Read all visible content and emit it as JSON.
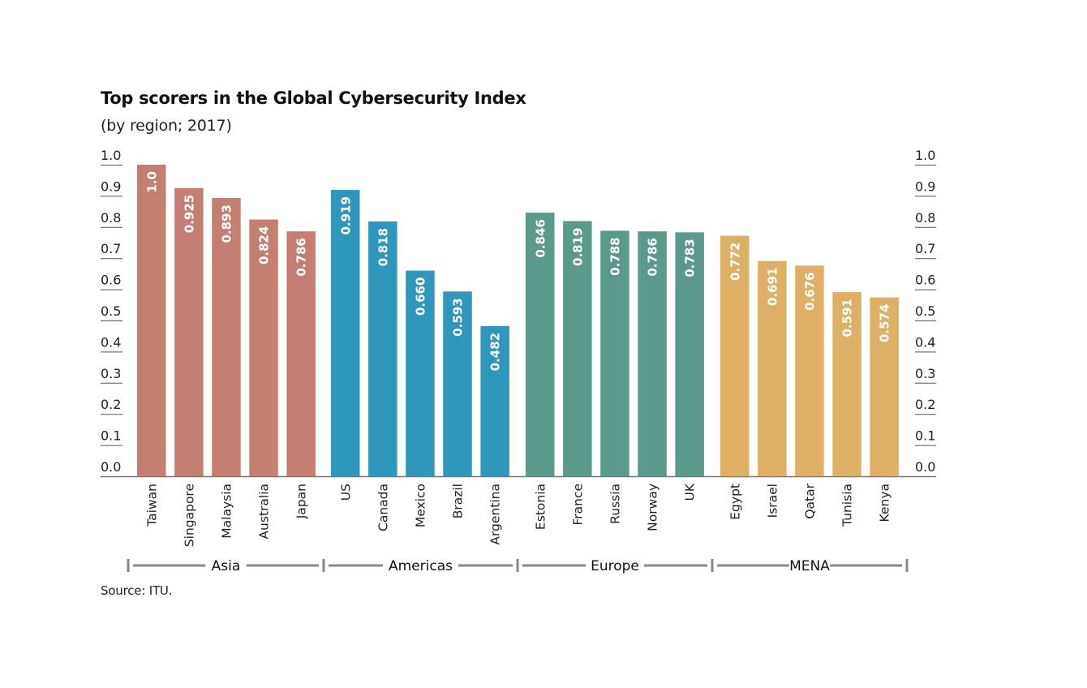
{
  "chart_data": {
    "type": "bar",
    "title": "Top scorers in the Global Cybersecurity Index",
    "subtitle": "(by region; 2017)",
    "source": "Source: ITU.",
    "xlabel": "",
    "ylabel": "",
    "ylim": [
      0,
      1.0
    ],
    "yticks": [
      "0.0",
      "0.1",
      "0.2",
      "0.3",
      "0.4",
      "0.5",
      "0.6",
      "0.7",
      "0.8",
      "0.9",
      "1.0"
    ],
    "grid": false,
    "axes": [
      "left",
      "right"
    ],
    "groups": [
      {
        "name": "Asia",
        "color": "#c47f72",
        "categories": [
          "Taiwan",
          "Singapore",
          "Malaysia",
          "Australia",
          "Japan"
        ],
        "values": [
          1.0,
          0.925,
          0.893,
          0.824,
          0.786
        ],
        "labels": [
          "1.0",
          "0.925",
          "0.893",
          "0.824",
          "0.786"
        ]
      },
      {
        "name": "Americas",
        "color": "#2e97bb",
        "categories": [
          "US",
          "Canada",
          "Mexico",
          "Brazil",
          "Argentina"
        ],
        "values": [
          0.919,
          0.818,
          0.66,
          0.593,
          0.482
        ],
        "labels": [
          "0.919",
          "0.818",
          "0.660",
          "0.593",
          "0.482"
        ]
      },
      {
        "name": "Europe",
        "color": "#5a9a8c",
        "categories": [
          "Estonia",
          "France",
          "Russia",
          "Norway",
          "UK"
        ],
        "values": [
          0.846,
          0.819,
          0.788,
          0.786,
          0.783
        ],
        "labels": [
          "0.846",
          "0.819",
          "0.788",
          "0.786",
          "0.783"
        ]
      },
      {
        "name": "MENA",
        "color": "#deb066",
        "categories": [
          "Egypt",
          "Israel",
          "Qatar",
          "Tunisia",
          "Kenya"
        ],
        "values": [
          0.772,
          0.691,
          0.676,
          0.591,
          0.574
        ],
        "labels": [
          "0.772",
          "0.691",
          "0.676",
          "0.591",
          "0.574"
        ]
      }
    ]
  }
}
